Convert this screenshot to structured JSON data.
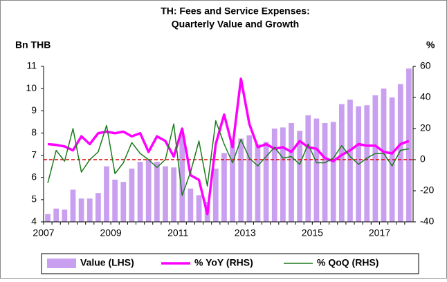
{
  "chart_data": {
    "type": "bar_line",
    "title": [
      "TH: Fees and Service Expenses:",
      "Quarterly Value and Growth"
    ],
    "y_label": "Bn THB",
    "y2_label": "%",
    "categories": [
      "2007",
      null,
      null,
      null,
      null,
      null,
      null,
      null,
      "2009",
      null,
      null,
      null,
      null,
      null,
      null,
      null,
      "2011",
      null,
      null,
      null,
      null,
      null,
      null,
      null,
      "2013",
      null,
      null,
      null,
      null,
      null,
      null,
      null,
      "2015",
      null,
      null,
      null,
      null,
      null,
      null,
      null,
      "2017",
      null,
      null,
      null
    ],
    "series": [
      {
        "name": "Value (LHS)",
        "type": "bar",
        "color": "#c9a0f0",
        "values": [
          4.35,
          4.6,
          4.55,
          5.45,
          5.05,
          5.05,
          5.3,
          6.5,
          5.9,
          5.8,
          6.4,
          6.7,
          6.8,
          6.7,
          6.5,
          6.45,
          7.9,
          5.5,
          5.2,
          4.9,
          6.4,
          7.1,
          7.6,
          7.75,
          7.9,
          7.5,
          7.6,
          8.2,
          8.25,
          8.45,
          8.1,
          8.8,
          8.65,
          8.45,
          8.5,
          9.3,
          9.5,
          9.2,
          9.25,
          9.7,
          10.0,
          9.6,
          10.2,
          10.9
        ]
      },
      {
        "name": "% YoY (RHS)",
        "type": "line",
        "axis": "y2",
        "color": "#ff00ff",
        "values": [
          10,
          9.5,
          8.5,
          6,
          15,
          10,
          17,
          18,
          17,
          18,
          15,
          17,
          5,
          15,
          12,
          2,
          20,
          -10,
          -13,
          -35,
          10,
          29,
          8,
          52,
          23,
          8,
          10,
          7,
          8,
          5,
          12,
          8,
          7,
          1,
          -1,
          3,
          6,
          10,
          9,
          9,
          5,
          4,
          10,
          12
        ]
      },
      {
        "name": "% QoQ (RHS)",
        "type": "line",
        "axis": "y2",
        "color": "#1a7a1a",
        "values": [
          -15,
          6,
          -1,
          20,
          -8,
          0,
          5,
          22,
          -9,
          -2,
          11,
          4,
          0,
          -5,
          0,
          23,
          -23,
          -8,
          12,
          -17,
          25,
          10,
          -2,
          13,
          1,
          -4,
          2,
          8,
          1,
          2,
          -3,
          10,
          -2,
          -2,
          1,
          9,
          2,
          -3,
          1,
          4,
          4,
          -4,
          6,
          7
        ]
      }
    ],
    "ylim": [
      4,
      11
    ],
    "yticks": [
      4,
      5,
      6,
      7,
      8,
      9,
      10,
      11
    ],
    "y2lim": [
      -40,
      60
    ],
    "y2ticks": [
      -40,
      -20,
      0,
      20,
      40,
      60
    ],
    "reference_line": {
      "value": 0,
      "axis": "y2",
      "color": "#e00000"
    },
    "legend": "bottom"
  }
}
